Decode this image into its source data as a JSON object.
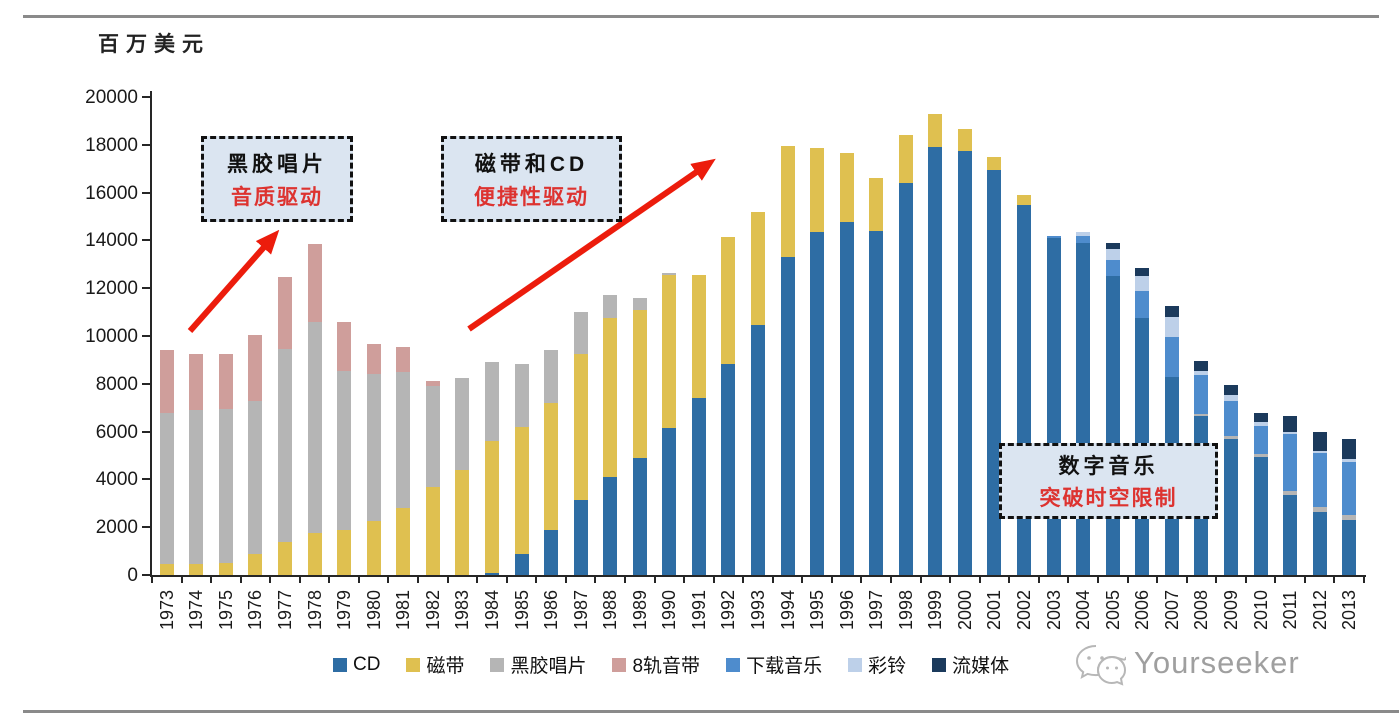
{
  "unit_label": "百万美元",
  "watermark": {
    "text": "Yourseeker",
    "icon": "wechat-icon"
  },
  "annotations": {
    "box1": {
      "line1": "黑胶唱片",
      "line2": "音质驱动"
    },
    "box2": {
      "line1": "磁带和CD",
      "line2": "便捷性驱动"
    },
    "box3": {
      "line1": "数字音乐",
      "line2": "突破时空限制"
    }
  },
  "colors": {
    "accent_red": "#ec1c0c",
    "callout_bg": "#dbe5f1",
    "rule_gray": "#8a8a8a"
  },
  "chart_data": {
    "type": "bar",
    "stacked": true,
    "title": "",
    "ylabel": "百万美元",
    "xlabel": "",
    "ylim": [
      0,
      20000
    ],
    "yticks": [
      0,
      2000,
      4000,
      6000,
      8000,
      10000,
      12000,
      14000,
      16000,
      18000,
      20000
    ],
    "grid": false,
    "legend_position": "bottom",
    "categories": [
      "1973",
      "1974",
      "1975",
      "1976",
      "1977",
      "1978",
      "1979",
      "1980",
      "1981",
      "1982",
      "1983",
      "1984",
      "1985",
      "1986",
      "1987",
      "1988",
      "1989",
      "1990",
      "1991",
      "1992",
      "1993",
      "1994",
      "1995",
      "1996",
      "1997",
      "1998",
      "1999",
      "2000",
      "2001",
      "2002",
      "2003",
      "2004",
      "2005",
      "2006",
      "2007",
      "2008",
      "2009",
      "2010",
      "2011",
      "2012",
      "2013"
    ],
    "series": [
      {
        "name": "CD",
        "color": "#2e6da4",
        "values": [
          0,
          0,
          0,
          0,
          0,
          0,
          0,
          0,
          0,
          0,
          0,
          100,
          900,
          1900,
          3150,
          4100,
          4900,
          6150,
          7400,
          8850,
          10450,
          13300,
          14350,
          14750,
          14400,
          16400,
          17900,
          17750,
          16950,
          15500,
          14100,
          13900,
          12500,
          10750,
          8300,
          6650,
          5700,
          4950,
          3350,
          2650,
          2300
        ]
      },
      {
        "name": "磁带",
        "color": "#dfc050",
        "values": [
          450,
          450,
          500,
          900,
          1400,
          1750,
          1900,
          2250,
          2800,
          3700,
          4400,
          5500,
          5300,
          5300,
          6100,
          6650,
          6200,
          6400,
          5150,
          5300,
          4750,
          4650,
          3500,
          2900,
          2200,
          2000,
          1400,
          900,
          550,
          400,
          0,
          0,
          0,
          0,
          0,
          0,
          0,
          0,
          0,
          0,
          0
        ]
      },
      {
        "name": "黑胶唱片",
        "color": "#b5b5b5",
        "values": [
          6350,
          6450,
          6450,
          6400,
          8050,
          8850,
          6650,
          6150,
          5700,
          4200,
          3850,
          3300,
          2650,
          2200,
          1750,
          950,
          500,
          100,
          0,
          0,
          0,
          0,
          0,
          0,
          0,
          0,
          0,
          0,
          0,
          0,
          0,
          0,
          0,
          0,
          0,
          100,
          100,
          100,
          150,
          200,
          200
        ]
      },
      {
        "name": "8轨音带",
        "color": "#cf9e9b",
        "values": [
          2600,
          2350,
          2300,
          2750,
          3000,
          3250,
          2050,
          1250,
          1050,
          200,
          0,
          0,
          0,
          0,
          0,
          0,
          0,
          0,
          0,
          0,
          0,
          0,
          0,
          0,
          0,
          0,
          0,
          0,
          0,
          0,
          0,
          0,
          0,
          0,
          0,
          0,
          0,
          0,
          0,
          0,
          0
        ]
      },
      {
        "name": "下载音乐",
        "color": "#4e8ccd",
        "values": [
          0,
          0,
          0,
          0,
          0,
          0,
          0,
          0,
          0,
          0,
          0,
          0,
          0,
          0,
          0,
          0,
          0,
          0,
          0,
          0,
          0,
          0,
          0,
          0,
          0,
          0,
          0,
          0,
          0,
          0,
          100,
          300,
          700,
          1150,
          1650,
          1600,
          1500,
          1200,
          2400,
          2250,
          2250
        ]
      },
      {
        "name": "彩铃",
        "color": "#bdd0e9",
        "values": [
          0,
          0,
          0,
          0,
          0,
          0,
          0,
          0,
          0,
          0,
          0,
          0,
          0,
          0,
          0,
          0,
          0,
          0,
          0,
          0,
          0,
          0,
          0,
          0,
          0,
          0,
          0,
          0,
          0,
          0,
          0,
          150,
          450,
          600,
          850,
          200,
          250,
          150,
          100,
          100,
          100
        ]
      },
      {
        "name": "流媒体",
        "color": "#1b3a5c",
        "values": [
          0,
          0,
          0,
          0,
          0,
          0,
          0,
          0,
          0,
          0,
          0,
          0,
          0,
          0,
          0,
          0,
          0,
          0,
          0,
          0,
          0,
          0,
          0,
          0,
          0,
          0,
          0,
          0,
          0,
          0,
          0,
          0,
          250,
          350,
          450,
          400,
          400,
          400,
          650,
          800,
          850
        ]
      }
    ]
  }
}
